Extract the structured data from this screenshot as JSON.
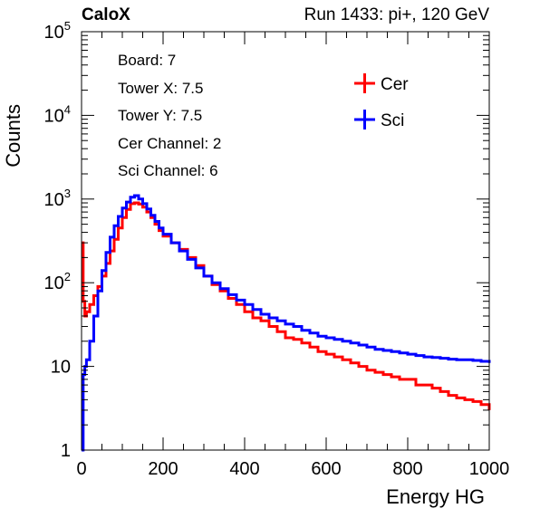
{
  "header": {
    "brand": "CaloX",
    "run_info": "Run 1433: pi+, 120 GeV"
  },
  "info_box": {
    "lines": [
      "Board: 7",
      "Tower X: 7.5",
      "Tower Y: 7.5",
      "Cer Channel: 2",
      "Sci Channel: 6"
    ]
  },
  "chart_data": {
    "type": "line",
    "title": "",
    "xlabel": "Energy HG",
    "ylabel": "Counts",
    "xlim": [
      0,
      1000
    ],
    "ylim": [
      1,
      100000
    ],
    "yscale": "log",
    "grid": false,
    "legend_position": "top-right",
    "x_ticks": [
      {
        "value": 0,
        "label": "0"
      },
      {
        "value": 200,
        "label": "200"
      },
      {
        "value": 400,
        "label": "400"
      },
      {
        "value": 600,
        "label": "600"
      },
      {
        "value": 800,
        "label": "800"
      },
      {
        "value": 1000,
        "label": "1000"
      }
    ],
    "y_ticks": [
      {
        "value": 1,
        "base": "1",
        "exp": ""
      },
      {
        "value": 10,
        "base": "10",
        "exp": ""
      },
      {
        "value": 100,
        "base": "10",
        "exp": "2"
      },
      {
        "value": 1000,
        "base": "10",
        "exp": "3"
      },
      {
        "value": 10000,
        "base": "10",
        "exp": "4"
      },
      {
        "value": 100000,
        "base": "10",
        "exp": "5"
      }
    ],
    "series": [
      {
        "name": "Cer",
        "color": "#ff0000",
        "x": [
          0,
          4,
          8,
          12,
          20,
          30,
          40,
          50,
          60,
          70,
          80,
          90,
          100,
          110,
          120,
          130,
          140,
          150,
          160,
          170,
          180,
          190,
          200,
          220,
          240,
          260,
          280,
          300,
          320,
          340,
          360,
          380,
          400,
          420,
          440,
          460,
          480,
          500,
          520,
          540,
          560,
          580,
          600,
          620,
          640,
          660,
          680,
          700,
          720,
          740,
          760,
          780,
          800,
          820,
          840,
          860,
          880,
          900,
          920,
          940,
          960,
          980,
          1000
        ],
        "y": [
          300,
          60,
          40,
          45,
          55,
          70,
          90,
          120,
          170,
          240,
          330,
          450,
          600,
          750,
          880,
          900,
          870,
          800,
          700,
          600,
          500,
          420,
          360,
          300,
          250,
          200,
          160,
          120,
          95,
          80,
          65,
          55,
          45,
          38,
          35,
          30,
          26,
          22,
          21,
          19,
          17,
          15,
          14,
          13,
          12,
          11,
          10,
          9,
          8.5,
          8,
          7.5,
          7,
          7,
          6,
          6,
          5.5,
          5,
          4.5,
          4.2,
          4,
          3.8,
          3.5,
          3
        ]
      },
      {
        "name": "Sci",
        "color": "#0000ff",
        "x": [
          0,
          4,
          8,
          12,
          20,
          30,
          40,
          50,
          60,
          70,
          80,
          90,
          100,
          110,
          120,
          130,
          140,
          150,
          160,
          170,
          180,
          190,
          200,
          220,
          240,
          260,
          280,
          300,
          320,
          340,
          360,
          380,
          400,
          420,
          440,
          460,
          480,
          500,
          520,
          540,
          560,
          580,
          600,
          620,
          640,
          660,
          680,
          700,
          720,
          740,
          760,
          780,
          800,
          820,
          840,
          860,
          880,
          900,
          920,
          940,
          960,
          980,
          1000
        ],
        "y": [
          1,
          8,
          10,
          12,
          20,
          40,
          80,
          140,
          230,
          350,
          480,
          620,
          780,
          920,
          1050,
          1100,
          1000,
          880,
          760,
          640,
          540,
          450,
          380,
          300,
          240,
          190,
          150,
          120,
          100,
          85,
          72,
          62,
          55,
          48,
          42,
          38,
          35,
          32,
          30,
          27,
          25,
          23,
          22,
          21,
          20,
          19,
          18,
          17,
          16,
          15.5,
          15,
          14.5,
          14,
          13.5,
          13,
          12.8,
          12.5,
          12.2,
          12,
          12,
          11.8,
          11.5,
          11
        ]
      }
    ]
  }
}
